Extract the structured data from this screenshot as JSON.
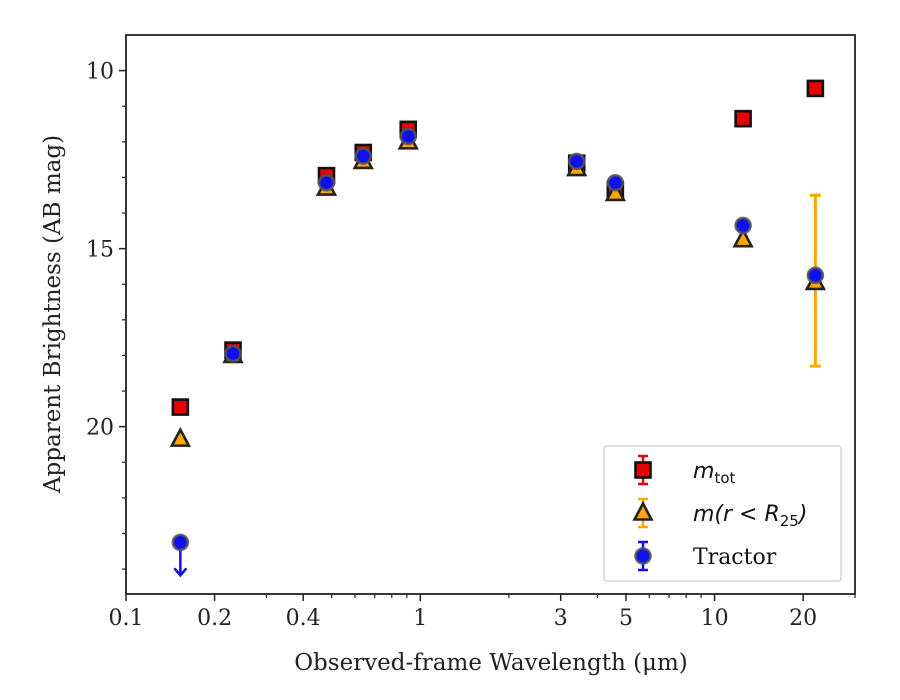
{
  "chart_data": {
    "type": "scatter",
    "xlabel": "Observed-frame Wavelength (μm)",
    "ylabel": "Apparent Brightness (AB mag)",
    "xscale": "log",
    "xlim": [
      0.1,
      30
    ],
    "ylim": [
      24.7,
      9.0
    ],
    "y_inverted": true,
    "x_ticks": [
      {
        "value": 0.1,
        "label": "0.1"
      },
      {
        "value": 0.2,
        "label": "0.2"
      },
      {
        "value": 0.4,
        "label": "0.4"
      },
      {
        "value": 1,
        "label": "1"
      },
      {
        "value": 3,
        "label": "3"
      },
      {
        "value": 5,
        "label": "5"
      },
      {
        "value": 10,
        "label": "10"
      },
      {
        "value": 20,
        "label": "20"
      }
    ],
    "x_minor_ticks": [
      0.3,
      0.5,
      0.6,
      0.7,
      0.8,
      0.9,
      2,
      4,
      6,
      7,
      8,
      9,
      30
    ],
    "y_ticks": [
      {
        "value": 10,
        "label": "10"
      },
      {
        "value": 15,
        "label": "15"
      },
      {
        "value": 20,
        "label": "20"
      }
    ],
    "y_minor_ticks": [
      11,
      12,
      13,
      14,
      16,
      17,
      18,
      19,
      21,
      22,
      23,
      24
    ],
    "legend_position": "bottom-right",
    "series": [
      {
        "name": "m_tot",
        "legend_main": "m",
        "legend_sub": "tot",
        "marker": "square",
        "color": "#e60000",
        "points": [
          {
            "x": 0.153,
            "y": 19.45
          },
          {
            "x": 0.231,
            "y": 17.85
          },
          {
            "x": 0.48,
            "y": 12.95
          },
          {
            "x": 0.64,
            "y": 12.3
          },
          {
            "x": 0.91,
            "y": 11.65
          },
          {
            "x": 3.4,
            "y": 12.6
          },
          {
            "x": 4.6,
            "y": 13.35
          },
          {
            "x": 12.5,
            "y": 11.35
          },
          {
            "x": 22.0,
            "y": 10.5
          }
        ]
      },
      {
        "name": "m(r < R25)",
        "legend_main": "m(r < R",
        "legend_sub": "25",
        "legend_close": ")",
        "marker": "triangle",
        "color": "#ffa500",
        "points": [
          {
            "x": 0.153,
            "y": 20.35
          },
          {
            "x": 0.231,
            "y": 18.0
          },
          {
            "x": 0.48,
            "y": 13.3
          },
          {
            "x": 0.64,
            "y": 12.55
          },
          {
            "x": 0.91,
            "y": 12.0
          },
          {
            "x": 3.4,
            "y": 12.75
          },
          {
            "x": 4.6,
            "y": 13.45
          },
          {
            "x": 12.5,
            "y": 14.75
          },
          {
            "x": 22.0,
            "y": 15.95,
            "err_low": 13.5,
            "err_high": 18.3
          }
        ]
      },
      {
        "name": "Tractor",
        "marker": "circle",
        "color": "#1010ee",
        "points": [
          {
            "x": 0.153,
            "y": 23.25,
            "upper_limit": true
          },
          {
            "x": 0.231,
            "y": 17.95
          },
          {
            "x": 0.48,
            "y": 13.15
          },
          {
            "x": 0.64,
            "y": 12.4
          },
          {
            "x": 0.91,
            "y": 11.85
          },
          {
            "x": 3.4,
            "y": 12.55
          },
          {
            "x": 4.6,
            "y": 13.15
          },
          {
            "x": 12.5,
            "y": 14.35
          },
          {
            "x": 22.0,
            "y": 15.75
          }
        ]
      }
    ]
  }
}
